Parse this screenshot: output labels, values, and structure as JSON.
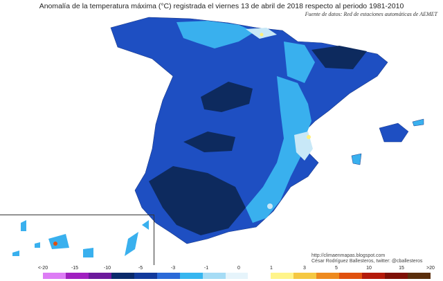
{
  "title": "Anomalía de la temperatura máxima (°C) registrada el viernes 13 de abril de 2018 respecto al periodo 1981-2010",
  "source": "Fuente de datos: Red de estaciones automáticas de AEMET",
  "credits": {
    "url": "http://climaenmapas.blogspot.com",
    "author": "César Rodríguez Ballesteros, twitter: @cballesteros"
  },
  "legend": {
    "colors": [
      "#dd7df5",
      "#a020c0",
      "#6c1a9c",
      "#0a2a6b",
      "#123a9c",
      "#2b6ad8",
      "#36b6f0",
      "#a6dcf5",
      "#e6f4fb",
      "#ffffff",
      "#fff48a",
      "#f5c842",
      "#ee8a1e",
      "#e0500e",
      "#b41a0a",
      "#7e1006",
      "#5a2e0c"
    ],
    "labels": [
      "<-20",
      "-15",
      "-10",
      "-5",
      "-3",
      "-1",
      "0",
      "1",
      "3",
      "5",
      "10",
      "15",
      ">20"
    ]
  },
  "palette": {
    "very_cold": "#0d2a5e",
    "cold": "#1e4fc2",
    "mild": "#39b0ee",
    "light": "#c8e8f7",
    "warm": "#fff07a"
  }
}
